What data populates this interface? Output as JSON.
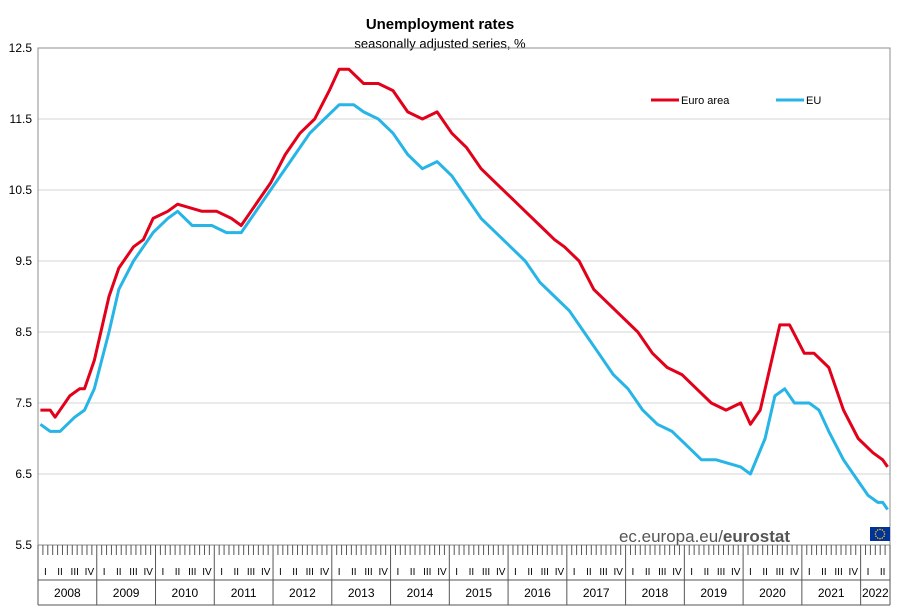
{
  "chart_data": {
    "type": "line",
    "title": "Unemployment rates",
    "subtitle": "seasonally adjusted series, %",
    "xlabel": "",
    "ylabel": "",
    "ylim": [
      5.5,
      12.5
    ],
    "yticks": [
      "12.5",
      "11.5",
      "10.5",
      "9.5",
      "8.5",
      "7.5",
      "6.5",
      "5.5"
    ],
    "years": [
      "2008",
      "2009",
      "2010",
      "2011",
      "2012",
      "2013",
      "2014",
      "2015",
      "2016",
      "2017",
      "2018",
      "2019",
      "2020",
      "2021",
      "2022"
    ],
    "quarter_labels": [
      "I",
      "II",
      "III",
      "IV"
    ],
    "x_start": "2008-01",
    "x_end": "2022-06",
    "grid": true,
    "legend_position": "top-right",
    "series": [
      {
        "name": "Euro area",
        "color": "#e2001a",
        "points": [
          [
            "2008-01",
            7.4
          ],
          [
            "2008-03",
            7.4
          ],
          [
            "2008-04",
            7.3
          ],
          [
            "2008-07",
            7.6
          ],
          [
            "2008-09",
            7.7
          ],
          [
            "2008-10",
            7.7
          ],
          [
            "2008-12",
            8.1
          ],
          [
            "2009-03",
            9.0
          ],
          [
            "2009-05",
            9.4
          ],
          [
            "2009-08",
            9.7
          ],
          [
            "2009-10",
            9.8
          ],
          [
            "2009-12",
            10.1
          ],
          [
            "2010-03",
            10.2
          ],
          [
            "2010-05",
            10.3
          ],
          [
            "2010-10",
            10.2
          ],
          [
            "2011-01",
            10.2
          ],
          [
            "2011-04",
            10.1
          ],
          [
            "2011-06",
            10.0
          ],
          [
            "2011-08",
            10.2
          ],
          [
            "2011-12",
            10.6
          ],
          [
            "2012-03",
            11.0
          ],
          [
            "2012-06",
            11.3
          ],
          [
            "2012-09",
            11.5
          ],
          [
            "2012-12",
            11.9
          ],
          [
            "2013-02",
            12.2
          ],
          [
            "2013-04",
            12.2
          ],
          [
            "2013-07",
            12.0
          ],
          [
            "2013-10",
            12.0
          ],
          [
            "2014-01",
            11.9
          ],
          [
            "2014-04",
            11.6
          ],
          [
            "2014-07",
            11.5
          ],
          [
            "2014-10",
            11.6
          ],
          [
            "2015-01",
            11.3
          ],
          [
            "2015-04",
            11.1
          ],
          [
            "2015-07",
            10.8
          ],
          [
            "2015-10",
            10.6
          ],
          [
            "2016-01",
            10.4
          ],
          [
            "2016-04",
            10.2
          ],
          [
            "2016-07",
            10.0
          ],
          [
            "2016-10",
            9.8
          ],
          [
            "2016-12",
            9.7
          ],
          [
            "2017-03",
            9.5
          ],
          [
            "2017-06",
            9.1
          ],
          [
            "2017-09",
            8.9
          ],
          [
            "2017-12",
            8.7
          ],
          [
            "2018-03",
            8.5
          ],
          [
            "2018-06",
            8.2
          ],
          [
            "2018-09",
            8.0
          ],
          [
            "2018-12",
            7.9
          ],
          [
            "2019-03",
            7.7
          ],
          [
            "2019-06",
            7.5
          ],
          [
            "2019-09",
            7.4
          ],
          [
            "2019-12",
            7.5
          ],
          [
            "2020-02",
            7.2
          ],
          [
            "2020-04",
            7.4
          ],
          [
            "2020-06",
            8.0
          ],
          [
            "2020-08",
            8.6
          ],
          [
            "2020-10",
            8.6
          ],
          [
            "2021-01",
            8.2
          ],
          [
            "2021-03",
            8.2
          ],
          [
            "2021-06",
            8.0
          ],
          [
            "2021-09",
            7.4
          ],
          [
            "2021-12",
            7.0
          ],
          [
            "2022-03",
            6.8
          ],
          [
            "2022-05",
            6.7
          ],
          [
            "2022-06",
            6.6
          ]
        ]
      },
      {
        "name": "EU",
        "color": "#26b5e6",
        "points": [
          [
            "2008-01",
            7.2
          ],
          [
            "2008-03",
            7.1
          ],
          [
            "2008-05",
            7.1
          ],
          [
            "2008-08",
            7.3
          ],
          [
            "2008-10",
            7.4
          ],
          [
            "2008-12",
            7.7
          ],
          [
            "2009-03",
            8.5
          ],
          [
            "2009-05",
            9.1
          ],
          [
            "2009-08",
            9.5
          ],
          [
            "2009-10",
            9.7
          ],
          [
            "2009-12",
            9.9
          ],
          [
            "2010-03",
            10.1
          ],
          [
            "2010-05",
            10.2
          ],
          [
            "2010-08",
            10.0
          ],
          [
            "2010-12",
            10.0
          ],
          [
            "2011-03",
            9.9
          ],
          [
            "2011-06",
            9.9
          ],
          [
            "2011-10",
            10.3
          ],
          [
            "2012-01",
            10.6
          ],
          [
            "2012-05",
            11.0
          ],
          [
            "2012-08",
            11.3
          ],
          [
            "2012-11",
            11.5
          ],
          [
            "2013-02",
            11.7
          ],
          [
            "2013-05",
            11.7
          ],
          [
            "2013-07",
            11.6
          ],
          [
            "2013-10",
            11.5
          ],
          [
            "2014-01",
            11.3
          ],
          [
            "2014-04",
            11.0
          ],
          [
            "2014-07",
            10.8
          ],
          [
            "2014-10",
            10.9
          ],
          [
            "2015-01",
            10.7
          ],
          [
            "2015-04",
            10.4
          ],
          [
            "2015-07",
            10.1
          ],
          [
            "2015-10",
            9.9
          ],
          [
            "2016-01",
            9.7
          ],
          [
            "2016-04",
            9.5
          ],
          [
            "2016-07",
            9.2
          ],
          [
            "2016-10",
            9.0
          ],
          [
            "2017-01",
            8.8
          ],
          [
            "2017-04",
            8.5
          ],
          [
            "2017-07",
            8.2
          ],
          [
            "2017-10",
            7.9
          ],
          [
            "2018-01",
            7.7
          ],
          [
            "2018-04",
            7.4
          ],
          [
            "2018-07",
            7.2
          ],
          [
            "2018-10",
            7.1
          ],
          [
            "2019-01",
            6.9
          ],
          [
            "2019-04",
            6.7
          ],
          [
            "2019-07",
            6.7
          ],
          [
            "2019-12",
            6.6
          ],
          [
            "2020-02",
            6.5
          ],
          [
            "2020-05",
            7.0
          ],
          [
            "2020-07",
            7.6
          ],
          [
            "2020-09",
            7.7
          ],
          [
            "2020-11",
            7.5
          ],
          [
            "2021-02",
            7.5
          ],
          [
            "2021-04",
            7.4
          ],
          [
            "2021-06",
            7.1
          ],
          [
            "2021-09",
            6.7
          ],
          [
            "2021-12",
            6.4
          ],
          [
            "2022-02",
            6.2
          ],
          [
            "2022-04",
            6.1
          ],
          [
            "2022-05",
            6.1
          ],
          [
            "2022-06",
            6.0
          ]
        ]
      }
    ]
  },
  "footer": {
    "source": "ec.europa.eu/",
    "brand": "eurostat"
  },
  "colors": {
    "euro_area": "#e2001a",
    "eu": "#26b5e6",
    "eu_flag": "#003399",
    "eu_stars": "#ffcc00"
  }
}
